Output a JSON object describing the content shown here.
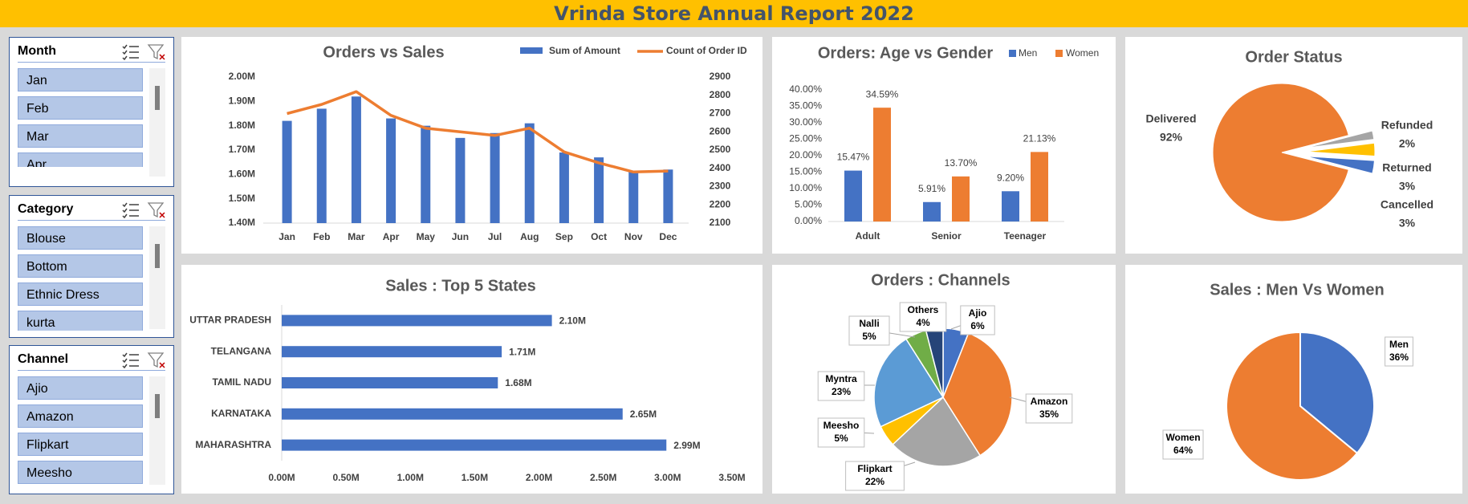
{
  "title": "Vrinda Store Annual Report 2022",
  "colors": {
    "blue": "#4472c4",
    "orange": "#ed7d31",
    "gray": "#a5a5a5",
    "yellow": "#ffc000",
    "lightblue": "#5b9bd5",
    "green": "#70ad47",
    "navy": "#264478"
  },
  "slicers": [
    {
      "title": "Month",
      "items": [
        "Jan",
        "Feb",
        "Mar",
        "Apr"
      ]
    },
    {
      "title": "Category",
      "items": [
        "Blouse",
        "Bottom",
        "Ethnic Dress",
        "kurta"
      ]
    },
    {
      "title": "Channel",
      "items": [
        "Ajio",
        "Amazon",
        "Flipkart",
        "Meesho"
      ]
    }
  ],
  "chart_data": [
    {
      "type": "bar",
      "title": "Orders vs Sales",
      "categories": [
        "Jan",
        "Feb",
        "Mar",
        "Apr",
        "May",
        "Jun",
        "Jul",
        "Aug",
        "Sep",
        "Oct",
        "Nov",
        "Dec"
      ],
      "series": [
        {
          "name": "Sum of Amount",
          "type": "bar",
          "axis": "left",
          "values": [
            1.82,
            1.87,
            1.92,
            1.83,
            1.8,
            1.75,
            1.77,
            1.81,
            1.69,
            1.67,
            1.61,
            1.62
          ]
        },
        {
          "name": "Count of Order ID",
          "type": "line",
          "axis": "right",
          "values": [
            2700,
            2750,
            2820,
            2690,
            2620,
            2600,
            2580,
            2620,
            2490,
            2430,
            2380,
            2385
          ]
        }
      ],
      "y_left_ticks": [
        "2.00M",
        "1.90M",
        "1.80M",
        "1.70M",
        "1.60M",
        "1.50M",
        "1.40M"
      ],
      "y_right_ticks": [
        "2900",
        "2800",
        "2700",
        "2600",
        "2500",
        "2400",
        "2300",
        "2200",
        "2100"
      ],
      "ylim_left": [
        1.4,
        2.0
      ],
      "ylim_right": [
        2100,
        2900
      ],
      "legend": "top-right"
    },
    {
      "type": "bar",
      "title": "Orders: Age vs Gender",
      "categories": [
        "Adult",
        "Senior",
        "Teenager"
      ],
      "series": [
        {
          "name": "Men",
          "values": [
            15.47,
            5.91,
            9.2
          ],
          "labels": [
            "15.47%",
            "5.91%",
            "9.20%"
          ]
        },
        {
          "name": "Women",
          "values": [
            34.59,
            13.7,
            21.13
          ],
          "labels": [
            "34.59%",
            "13.70%",
            "21.13%"
          ]
        }
      ],
      "y_ticks": [
        "40.00%",
        "35.00%",
        "30.00%",
        "25.00%",
        "20.00%",
        "15.00%",
        "10.00%",
        "5.00%",
        "0.00%"
      ],
      "ylim": [
        0,
        40
      ],
      "legend": "top-right"
    },
    {
      "type": "pie",
      "title": "Order Status",
      "slices": [
        {
          "name": "Delivered",
          "value": 92,
          "label": "92%"
        },
        {
          "name": "Refunded",
          "value": 2,
          "label": "2%"
        },
        {
          "name": "Returned",
          "value": 3,
          "label": "3%"
        },
        {
          "name": "Cancelled",
          "value": 3,
          "label": "3%"
        }
      ]
    },
    {
      "type": "bar",
      "orientation": "horizontal",
      "title": "Sales : Top 5 States",
      "categories": [
        "UTTAR PRADESH",
        "TELANGANA",
        "TAMIL NADU",
        "KARNATAKA",
        "MAHARASHTRA"
      ],
      "values": [
        2.1,
        1.71,
        1.68,
        2.65,
        2.99
      ],
      "labels": [
        "2.10M",
        "1.71M",
        "1.68M",
        "2.65M",
        "2.99M"
      ],
      "x_ticks": [
        "0.00M",
        "0.50M",
        "1.00M",
        "1.50M",
        "2.00M",
        "2.50M",
        "3.00M",
        "3.50M"
      ],
      "xlim": [
        0,
        3.5
      ]
    },
    {
      "type": "pie",
      "title": "Orders : Channels",
      "slices": [
        {
          "name": "Ajio",
          "value": 6,
          "label": "6%"
        },
        {
          "name": "Amazon",
          "value": 35,
          "label": "35%"
        },
        {
          "name": "Flipkart",
          "value": 22,
          "label": "22%"
        },
        {
          "name": "Meesho",
          "value": 5,
          "label": "5%"
        },
        {
          "name": "Myntra",
          "value": 23,
          "label": "23%"
        },
        {
          "name": "Nalli",
          "value": 5,
          "label": "5%"
        },
        {
          "name": "Others",
          "value": 4,
          "label": "4%"
        }
      ]
    },
    {
      "type": "pie",
      "title": "Sales : Men Vs Women",
      "slices": [
        {
          "name": "Men",
          "value": 36,
          "label": "36%"
        },
        {
          "name": "Women",
          "value": 64,
          "label": "64%"
        }
      ]
    }
  ]
}
